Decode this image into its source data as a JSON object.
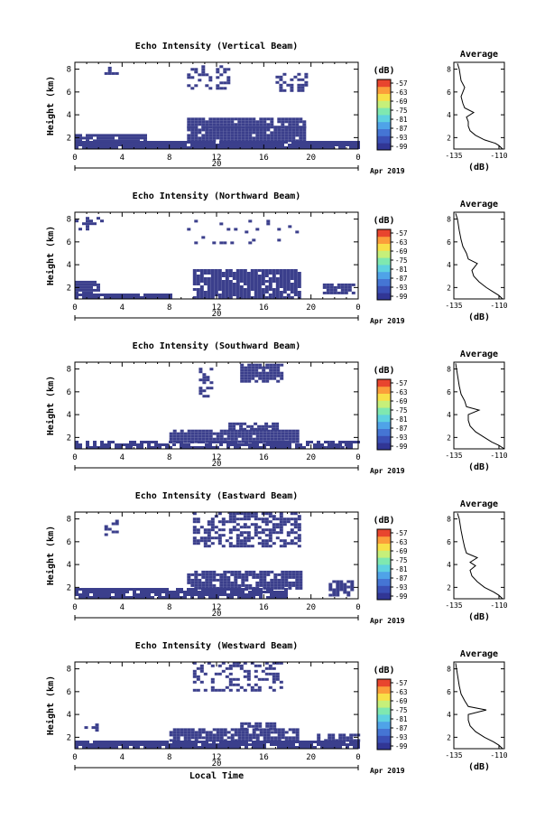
{
  "chart_data": [
    {
      "type": "heatmap",
      "title": "Echo Intensity (Vertical Beam)",
      "ylabel": "Height (km)",
      "y_ticks": [
        "2",
        "4",
        "6",
        "8"
      ],
      "x_ticks": [
        "0",
        "4",
        "8",
        "12",
        "16",
        "20",
        "0"
      ],
      "date_label": "20",
      "month_label": "Apr 2019",
      "colorbar_unit": "(dB)",
      "colorbar_ticks": [
        "-57",
        "-63",
        "-69",
        "-75",
        "-81",
        "-87",
        "-93",
        "-99"
      ],
      "profile_title": "Average",
      "profile_xticks": [
        "-135",
        "-110"
      ],
      "profile_yticks": [
        "2",
        "4",
        "6",
        "8"
      ],
      "profile_xlabel": "(dB)",
      "profile_values": [
        [
          -108,
          1
        ],
        [
          -110,
          1.3
        ],
        [
          -112,
          1.5
        ],
        [
          -118,
          1.8
        ],
        [
          -123,
          2.2
        ],
        [
          -126,
          2.6
        ],
        [
          -127,
          3
        ],
        [
          -127,
          3.4
        ],
        [
          -128,
          3.8
        ],
        [
          -124,
          4.2
        ],
        [
          -129,
          4.6
        ],
        [
          -130,
          5
        ],
        [
          -131,
          5.6
        ],
        [
          -129,
          6.4
        ],
        [
          -131,
          7
        ],
        [
          -132,
          8
        ],
        [
          -133,
          8.5
        ]
      ]
    },
    {
      "type": "heatmap",
      "title": "Echo Intensity (Northward Beam)",
      "ylabel": "Height (km)",
      "y_ticks": [
        "2",
        "4",
        "6",
        "8"
      ],
      "x_ticks": [
        "0",
        "4",
        "8",
        "12",
        "16",
        "20",
        "0"
      ],
      "date_label": "20",
      "month_label": "Apr 2019",
      "colorbar_unit": "(dB)",
      "colorbar_ticks": [
        "-57",
        "-63",
        "-69",
        "-75",
        "-81",
        "-87",
        "-93",
        "-99"
      ],
      "profile_title": "Average",
      "profile_xticks": [
        "-135",
        "-110"
      ],
      "profile_yticks": [
        "2",
        "4",
        "6",
        "8"
      ],
      "profile_xlabel": "(dB)",
      "profile_values": [
        [
          -108,
          1
        ],
        [
          -110,
          1.3
        ],
        [
          -113,
          1.6
        ],
        [
          -117,
          2
        ],
        [
          -121,
          2.5
        ],
        [
          -124,
          3
        ],
        [
          -125,
          3.5
        ],
        [
          -122,
          4.1
        ],
        [
          -127,
          4.5
        ],
        [
          -128,
          5
        ],
        [
          -130,
          5.6
        ],
        [
          -131,
          6.2
        ],
        [
          -132,
          7
        ],
        [
          -133,
          8
        ],
        [
          -134,
          8.5
        ]
      ]
    },
    {
      "type": "heatmap",
      "title": "Echo Intensity (Southward Beam)",
      "ylabel": "Height (km)",
      "y_ticks": [
        "2",
        "4",
        "6",
        "8"
      ],
      "x_ticks": [
        "0",
        "4",
        "8",
        "12",
        "16",
        "20",
        "0"
      ],
      "date_label": "20",
      "month_label": "Apr 2019",
      "colorbar_unit": "(dB)",
      "colorbar_ticks": [
        "-57",
        "-63",
        "-69",
        "-75",
        "-81",
        "-87",
        "-93",
        "-99"
      ],
      "profile_title": "Average",
      "profile_xticks": [
        "-135",
        "-110"
      ],
      "profile_yticks": [
        "2",
        "4",
        "6",
        "8"
      ],
      "profile_xlabel": "(dB)",
      "profile_values": [
        [
          -107,
          1
        ],
        [
          -110,
          1.3
        ],
        [
          -114,
          1.6
        ],
        [
          -118,
          2
        ],
        [
          -123,
          2.5
        ],
        [
          -126,
          3
        ],
        [
          -127,
          3.5
        ],
        [
          -127,
          4
        ],
        [
          -121,
          4.4
        ],
        [
          -128,
          4.7
        ],
        [
          -129,
          5.2
        ],
        [
          -131,
          5.8
        ],
        [
          -132,
          6.5
        ],
        [
          -133,
          7.5
        ],
        [
          -134,
          8.5
        ]
      ]
    },
    {
      "type": "heatmap",
      "title": "Echo Intensity (Eastward Beam)",
      "ylabel": "Height (km)",
      "y_ticks": [
        "2",
        "4",
        "6",
        "8"
      ],
      "x_ticks": [
        "0",
        "4",
        "8",
        "12",
        "16",
        "20",
        "0"
      ],
      "date_label": "20",
      "month_label": "Apr 2019",
      "colorbar_unit": "(dB)",
      "colorbar_ticks": [
        "-57",
        "-63",
        "-69",
        "-75",
        "-81",
        "-87",
        "-93",
        "-99"
      ],
      "profile_title": "Average",
      "profile_xticks": [
        "-135",
        "-110"
      ],
      "profile_yticks": [
        "2",
        "4",
        "6",
        "8"
      ],
      "profile_xlabel": "(dB)",
      "profile_values": [
        [
          -108,
          1
        ],
        [
          -110,
          1.3
        ],
        [
          -113,
          1.6
        ],
        [
          -118,
          2
        ],
        [
          -122,
          2.5
        ],
        [
          -125,
          3
        ],
        [
          -126,
          3.5
        ],
        [
          -123,
          3.9
        ],
        [
          -126,
          4.2
        ],
        [
          -122,
          4.6
        ],
        [
          -128,
          5
        ],
        [
          -129,
          5.5
        ],
        [
          -130,
          6.2
        ],
        [
          -131,
          7
        ],
        [
          -132,
          8
        ],
        [
          -133,
          8.5
        ]
      ]
    },
    {
      "type": "heatmap",
      "title": "Echo Intensity (Westward Beam)",
      "ylabel": "Height (km)",
      "y_ticks": [
        "2",
        "4",
        "6",
        "8"
      ],
      "x_ticks": [
        "0",
        "4",
        "8",
        "12",
        "16",
        "20",
        "0"
      ],
      "date_label": "20",
      "month_label": "Apr 2019",
      "colorbar_unit": "(dB)",
      "colorbar_ticks": [
        "-57",
        "-63",
        "-69",
        "-75",
        "-81",
        "-87",
        "-93",
        "-99"
      ],
      "profile_title": "Average",
      "profile_xticks": [
        "-135",
        "-110"
      ],
      "profile_yticks": [
        "2",
        "4",
        "6",
        "8"
      ],
      "profile_xlabel": "(dB)",
      "profile_values": [
        [
          -108,
          1
        ],
        [
          -110,
          1.3
        ],
        [
          -113,
          1.6
        ],
        [
          -118,
          2
        ],
        [
          -123,
          2.5
        ],
        [
          -126,
          3
        ],
        [
          -127,
          3.5
        ],
        [
          -127,
          4
        ],
        [
          -117,
          4.4
        ],
        [
          -127,
          4.7
        ],
        [
          -129,
          5.2
        ],
        [
          -131,
          5.8
        ],
        [
          -132,
          6.5
        ],
        [
          -133,
          7.5
        ],
        [
          -134,
          8.5
        ]
      ]
    }
  ],
  "xlabel": "Local Time",
  "colors": {
    "fill": "#3b3f8c",
    "colorbar": [
      "#313695",
      "#3a4fb5",
      "#4575d4",
      "#4fa3e8",
      "#5fd1e0",
      "#7fe8b0",
      "#c6f07a",
      "#f8e048",
      "#fb9e3a",
      "#e8452e"
    ]
  }
}
